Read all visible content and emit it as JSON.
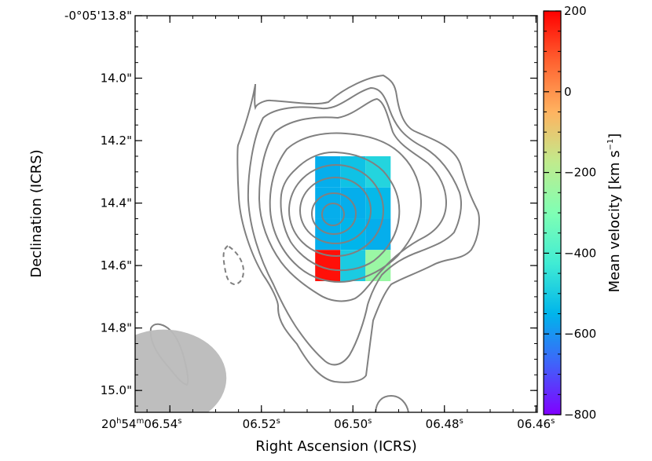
{
  "chart_data": {
    "type": "heatmap",
    "title": "",
    "xlabel": "Right Ascension (ICRS)",
    "ylabel": "Declination (ICRS)",
    "x_ticks": [
      {
        "value": 6.54,
        "hour": "20",
        "min": "54",
        "sec": "06.54",
        "full": true
      },
      {
        "value": 6.52,
        "sec": "06.52"
      },
      {
        "value": 6.5,
        "sec": "06.50"
      },
      {
        "value": 6.48,
        "sec": "06.48"
      },
      {
        "value": 6.46,
        "sec": "06.46"
      }
    ],
    "y_ticks": [
      {
        "value": 13.8,
        "label": "-0°05'13.8\""
      },
      {
        "value": 14.0,
        "label": "14.0\""
      },
      {
        "value": 14.2,
        "label": "14.2\""
      },
      {
        "value": 14.4,
        "label": "14.4\""
      },
      {
        "value": 14.6,
        "label": "14.6\""
      },
      {
        "value": 14.8,
        "label": "14.8\""
      },
      {
        "value": 15.0,
        "label": "15.0\""
      }
    ],
    "xlim": [
      6.5476,
      6.4597
    ],
    "ylim": [
      13.8,
      15.07
    ],
    "colorbar": {
      "label": "Mean velocity [km s",
      "label_sup": "−1",
      "label_close": "]",
      "cmap": "rainbow",
      "range": [
        -800,
        200
      ],
      "ticks": [
        {
          "value": 200,
          "label": "200"
        },
        {
          "value": 0,
          "label": "0"
        },
        {
          "value": -200,
          "label": "−200"
        },
        {
          "value": -400,
          "label": "−400"
        },
        {
          "value": -600,
          "label": "−600"
        },
        {
          "value": -800,
          "label": "−800"
        }
      ]
    },
    "pixels": [
      {
        "ra": 6.5055,
        "dec": 14.3,
        "v": -560
      },
      {
        "ra": 6.5,
        "dec": 14.3,
        "v": -520
      },
      {
        "ra": 6.4945,
        "dec": 14.3,
        "v": -480
      },
      {
        "ra": 6.5055,
        "dec": 14.4,
        "v": -560
      },
      {
        "ra": 6.5,
        "dec": 14.4,
        "v": -560
      },
      {
        "ra": 6.4945,
        "dec": 14.4,
        "v": -540
      },
      {
        "ra": 6.5055,
        "dec": 14.5,
        "v": -560
      },
      {
        "ra": 6.5,
        "dec": 14.5,
        "v": -550
      },
      {
        "ra": 6.4945,
        "dec": 14.5,
        "v": -560
      },
      {
        "ra": 6.5055,
        "dec": 14.6,
        "v": 180
      },
      {
        "ra": 6.5,
        "dec": 14.6,
        "v": -500
      },
      {
        "ra": 6.4945,
        "dec": 14.6,
        "v": -250
      }
    ],
    "pixel_size": {
      "ra": 0.0055,
      "dec": 0.1
    },
    "beam": {
      "ra": 6.5413,
      "dec": 14.96,
      "major_arcsec": 0.2,
      "minor_arcsec": 0.155
    }
  }
}
